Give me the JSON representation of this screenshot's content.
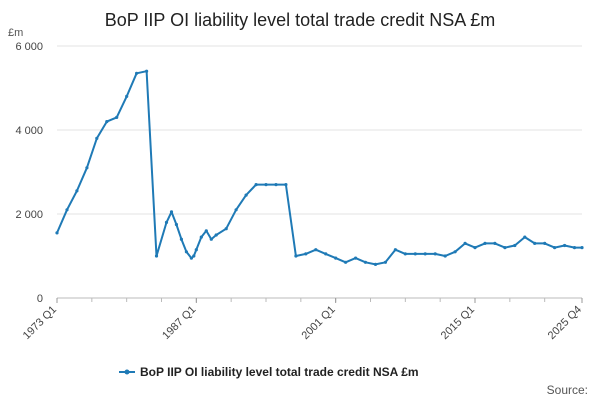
{
  "chart_data": {
    "type": "line",
    "title": "BoP IIP OI liability level total trade credit NSA £m",
    "ylabel": "£m",
    "ylim": [
      0,
      6000
    ],
    "yticks": [
      0,
      2000,
      4000,
      6000
    ],
    "ytick_labels": [
      "0",
      "2 000",
      "4 000",
      "6 000"
    ],
    "xticks": [
      "1973 Q1",
      "1987 Q1",
      "2001 Q1",
      "2015 Q1",
      "2025 Q4"
    ],
    "grid": "horizontal",
    "legend_position": "bottom",
    "series": [
      {
        "name": "BoP IIP OI liability level total trade credit NSA £m",
        "color": "#1f7ab6",
        "x": [
          "1973 Q1",
          "1974 Q1",
          "1975 Q1",
          "1976 Q1",
          "1977 Q1",
          "1978 Q1",
          "1979 Q1",
          "1980 Q1",
          "1981 Q1",
          "1982 Q1",
          "1983 Q1",
          "1984 Q1",
          "1984 Q3",
          "1985 Q1",
          "1985 Q3",
          "1986 Q1",
          "1986 Q3",
          "1986 Q4",
          "1987 Q1",
          "1987 Q3",
          "1988 Q1",
          "1988 Q3",
          "1989 Q1",
          "1990 Q1",
          "1991 Q1",
          "1992 Q1",
          "1993 Q1",
          "1994 Q1",
          "1995 Q1",
          "1996 Q1",
          "1997 Q1",
          "1998 Q1",
          "1999 Q1",
          "2000 Q1",
          "2001 Q1",
          "2002 Q1",
          "2003 Q1",
          "2004 Q1",
          "2005 Q1",
          "2006 Q1",
          "2007 Q1",
          "2008 Q1",
          "2009 Q1",
          "2010 Q1",
          "2011 Q1",
          "2012 Q1",
          "2013 Q1",
          "2014 Q1",
          "2015 Q1",
          "2016 Q1",
          "2017 Q1",
          "2018 Q1",
          "2019 Q1",
          "2020 Q1",
          "2021 Q1",
          "2022 Q1",
          "2023 Q1",
          "2024 Q1",
          "2025 Q1",
          "2025 Q4"
        ],
        "values": [
          1550,
          2100,
          2550,
          3100,
          3800,
          4200,
          4300,
          4800,
          5350,
          5400,
          1000,
          1800,
          2050,
          1750,
          1400,
          1100,
          950,
          1000,
          1150,
          1450,
          1600,
          1400,
          1500,
          1650,
          2100,
          2450,
          2700,
          2700,
          2700,
          2700,
          1000,
          1050,
          1150,
          1050,
          950,
          850,
          950,
          850,
          800,
          850,
          1150,
          1050,
          1050,
          1050,
          1050,
          1000,
          1100,
          1300,
          1200,
          1300,
          1300,
          1200,
          1250,
          1450,
          1300,
          1300,
          1200,
          1250,
          1200,
          1200
        ]
      }
    ]
  },
  "legend": {
    "label": "BoP IIP OI liability level total trade credit NSA £m"
  },
  "source": {
    "label": "Source:"
  }
}
